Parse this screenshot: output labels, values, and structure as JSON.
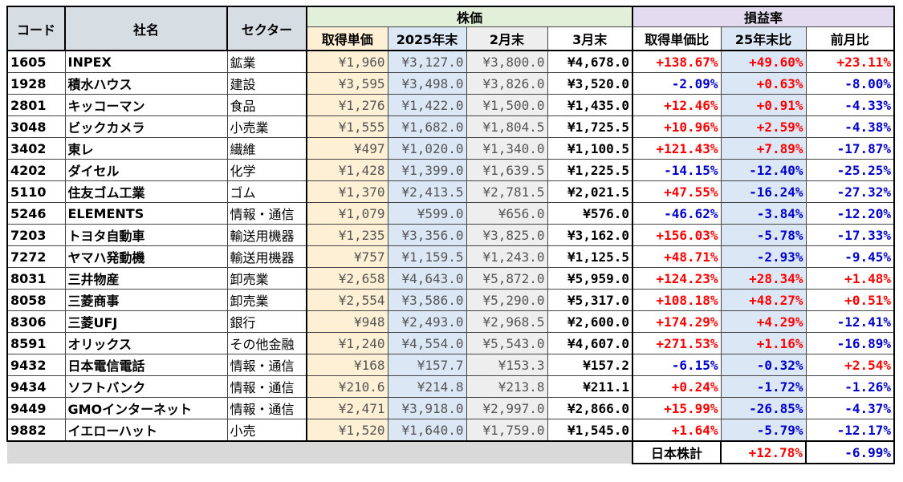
{
  "headers": {
    "code": "コード",
    "name": "社名",
    "sector": "セクター",
    "price_group": "株価",
    "rate_group": "損益率",
    "cost": "取得単価",
    "y2025": "2025年末",
    "feb": "2月末",
    "mar": "3月末",
    "r_cost": "取得単価比",
    "r_2025": "25年末比",
    "r_prev": "前月比"
  },
  "rows": [
    {
      "code": "1605",
      "name": "INPEX",
      "sector": "鉱業",
      "cost": "¥1,960",
      "y2025": "¥3,127.0",
      "feb": "¥3,800.0",
      "mar": "¥4,678.0",
      "r1": "+138.67%",
      "r2": "+49.60%",
      "r3": "+23.11%"
    },
    {
      "code": "1928",
      "name": "積水ハウス",
      "sector": "建設",
      "cost": "¥3,595",
      "y2025": "¥3,498.0",
      "feb": "¥3,826.0",
      "mar": "¥3,520.0",
      "r1": "-2.09%",
      "r2": "+0.63%",
      "r3": "-8.00%"
    },
    {
      "code": "2801",
      "name": "キッコーマン",
      "sector": "食品",
      "cost": "¥1,276",
      "y2025": "¥1,422.0",
      "feb": "¥1,500.0",
      "mar": "¥1,435.0",
      "r1": "+12.46%",
      "r2": "+0.91%",
      "r3": "-4.33%"
    },
    {
      "code": "3048",
      "name": "ビックカメラ",
      "sector": "小売業",
      "cost": "¥1,555",
      "y2025": "¥1,682.0",
      "feb": "¥1,804.5",
      "mar": "¥1,725.5",
      "r1": "+10.96%",
      "r2": "+2.59%",
      "r3": "-4.38%"
    },
    {
      "code": "3402",
      "name": "東レ",
      "sector": "繊維",
      "cost": "¥497",
      "y2025": "¥1,020.0",
      "feb": "¥1,340.0",
      "mar": "¥1,100.5",
      "r1": "+121.43%",
      "r2": "+7.89%",
      "r3": "-17.87%"
    },
    {
      "code": "4202",
      "name": "ダイセル",
      "sector": "化学",
      "cost": "¥1,428",
      "y2025": "¥1,399.0",
      "feb": "¥1,639.5",
      "mar": "¥1,225.5",
      "r1": "-14.15%",
      "r2": "-12.40%",
      "r3": "-25.25%"
    },
    {
      "code": "5110",
      "name": "住友ゴム工業",
      "sector": "ゴム",
      "cost": "¥1,370",
      "y2025": "¥2,413.5",
      "feb": "¥2,781.5",
      "mar": "¥2,021.5",
      "r1": "+47.55%",
      "r2": "-16.24%",
      "r3": "-27.32%"
    },
    {
      "code": "5246",
      "name": "ELEMENTS",
      "sector": "情報・通信",
      "cost": "¥1,079",
      "y2025": "¥599.0",
      "feb": "¥656.0",
      "mar": "¥576.0",
      "r1": "-46.62%",
      "r2": "-3.84%",
      "r3": "-12.20%"
    },
    {
      "code": "7203",
      "name": "トヨタ自動車",
      "sector": "輸送用機器",
      "cost": "¥1,235",
      "y2025": "¥3,356.0",
      "feb": "¥3,825.0",
      "mar": "¥3,162.0",
      "r1": "+156.03%",
      "r2": "-5.78%",
      "r3": "-17.33%"
    },
    {
      "code": "7272",
      "name": "ヤマハ発動機",
      "sector": "輸送用機器",
      "cost": "¥757",
      "y2025": "¥1,159.5",
      "feb": "¥1,243.0",
      "mar": "¥1,125.5",
      "r1": "+48.71%",
      "r2": "-2.93%",
      "r3": "-9.45%"
    },
    {
      "code": "8031",
      "name": "三井物産",
      "sector": "卸売業",
      "cost": "¥2,658",
      "y2025": "¥4,643.0",
      "feb": "¥5,872.0",
      "mar": "¥5,959.0",
      "r1": "+124.23%",
      "r2": "+28.34%",
      "r3": "+1.48%"
    },
    {
      "code": "8058",
      "name": "三菱商事",
      "sector": "卸売業",
      "cost": "¥2,554",
      "y2025": "¥3,586.0",
      "feb": "¥5,290.0",
      "mar": "¥5,317.0",
      "r1": "+108.18%",
      "r2": "+48.27%",
      "r3": "+0.51%"
    },
    {
      "code": "8306",
      "name": "三菱UFJ",
      "sector": "銀行",
      "cost": "¥948",
      "y2025": "¥2,493.0",
      "feb": "¥2,968.5",
      "mar": "¥2,600.0",
      "r1": "+174.29%",
      "r2": "+4.29%",
      "r3": "-12.41%"
    },
    {
      "code": "8591",
      "name": "オリックス",
      "sector": "その他金融",
      "cost": "¥1,240",
      "y2025": "¥4,554.0",
      "feb": "¥5,543.0",
      "mar": "¥4,607.0",
      "r1": "+271.53%",
      "r2": "+1.16%",
      "r3": "-16.89%"
    },
    {
      "code": "9432",
      "name": "日本電信電話",
      "sector": "情報・通信",
      "cost": "¥168",
      "y2025": "¥157.7",
      "feb": "¥153.3",
      "mar": "¥157.2",
      "r1": "-6.15%",
      "r2": "-0.32%",
      "r3": "+2.54%"
    },
    {
      "code": "9434",
      "name": "ソフトバンク",
      "sector": "情報・通信",
      "cost": "¥210.6",
      "y2025": "¥214.8",
      "feb": "¥213.8",
      "mar": "¥211.1",
      "r1": "+0.24%",
      "r2": "-1.72%",
      "r3": "-1.26%"
    },
    {
      "code": "9449",
      "name": "GMOインターネット",
      "sector": "情報・通信",
      "cost": "¥2,471",
      "y2025": "¥3,918.0",
      "feb": "¥2,997.0",
      "mar": "¥2,866.0",
      "r1": "+15.99%",
      "r2": "-26.85%",
      "r3": "-4.37%"
    },
    {
      "code": "9882",
      "name": "イエローハット",
      "sector": "小売",
      "cost": "¥1,520",
      "y2025": "¥1,640.0",
      "feb": "¥1,759.0",
      "mar": "¥1,545.0",
      "r1": "+1.64%",
      "r2": "-5.79%",
      "r3": "-12.17%"
    }
  ],
  "footer": {
    "label": "日本株計",
    "r2": "+12.78%",
    "r3": "-6.99%"
  },
  "colors": {
    "positive": "#ff0000",
    "negative": "#0000cc",
    "price_header": "#e2efd9",
    "rate_header": "#e3dcf0",
    "cost_column": "#fdf0d5",
    "year_column": "#dbe7f4",
    "feb_column": "#eeeeee"
  }
}
